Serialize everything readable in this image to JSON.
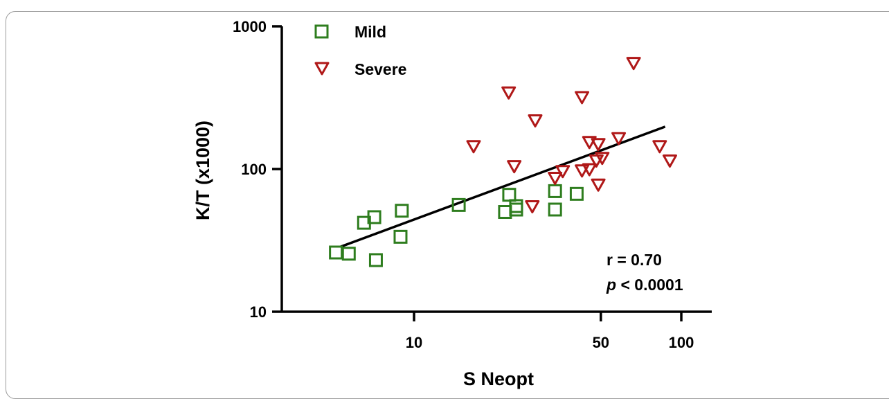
{
  "chart_data": {
    "type": "scatter",
    "xlabel": "S Neopt",
    "ylabel": "K/T (x1000)",
    "x_scale": "log",
    "y_scale": "log",
    "xlim": [
      3.2,
      130
    ],
    "ylim": [
      10,
      1000
    ],
    "x_ticks": [
      10,
      50,
      100
    ],
    "x_tick_labels": [
      "10",
      "50",
      "100"
    ],
    "y_ticks": [
      10,
      100,
      1000
    ],
    "y_tick_labels": [
      "10",
      "100",
      "1000"
    ],
    "grid": false,
    "legend_position": "top-left",
    "series": [
      {
        "name": "Mild",
        "marker": "open-square",
        "color": "#2e7d1e",
        "points": [
          [
            5.1,
            26
          ],
          [
            5.7,
            25.5
          ],
          [
            6.5,
            42
          ],
          [
            7.1,
            46
          ],
          [
            7.2,
            23
          ],
          [
            8.9,
            33.5
          ],
          [
            9.0,
            51
          ],
          [
            14.7,
            56
          ],
          [
            21.9,
            50
          ],
          [
            22.7,
            66
          ],
          [
            24.1,
            55
          ],
          [
            24.1,
            52
          ],
          [
            33.7,
            70
          ],
          [
            33.7,
            52
          ],
          [
            40.6,
            67
          ]
        ]
      },
      {
        "name": "Severe",
        "marker": "open-triangle-down",
        "color": "#b01818",
        "points": [
          [
            16.7,
            145
          ],
          [
            22.6,
            345
          ],
          [
            23.7,
            105
          ],
          [
            27.7,
            55
          ],
          [
            28.4,
            220
          ],
          [
            33.7,
            87
          ],
          [
            36.0,
            97
          ],
          [
            42.5,
            320
          ],
          [
            42.5,
            98
          ],
          [
            45.3,
            100
          ],
          [
            45.3,
            155
          ],
          [
            48.1,
            115
          ],
          [
            48.9,
            150
          ],
          [
            48.9,
            78
          ],
          [
            50.6,
            120
          ],
          [
            58.3,
            165
          ],
          [
            66.3,
            555
          ],
          [
            83.0,
            145
          ],
          [
            90.6,
            115
          ]
        ]
      }
    ],
    "fit_line": {
      "x": [
        5.3,
        87.0
      ],
      "y": [
        28.5,
        198
      ]
    },
    "annotations": {
      "r": "r = 0.70",
      "p_symbol": "p",
      "p_rest": " < 0.0001"
    }
  }
}
